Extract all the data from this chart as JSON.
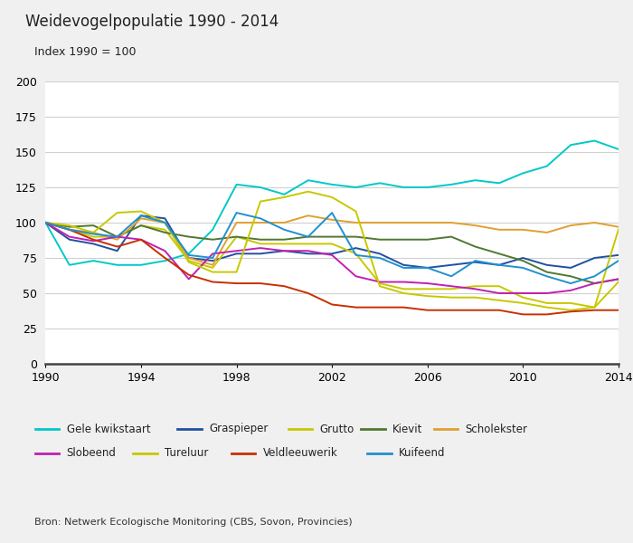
{
  "title": "Weidevogelpopulatie 1990 - 2014",
  "subtitle": "Index 1990 = 100",
  "source": "Bron: Netwerk Ecologische Monitoring (CBS, Sovon, Provincies)",
  "years": [
    1990,
    1991,
    1992,
    1993,
    1994,
    1995,
    1996,
    1997,
    1998,
    1999,
    2000,
    2001,
    2002,
    2003,
    2004,
    2005,
    2006,
    2007,
    2008,
    2009,
    2010,
    2011,
    2012,
    2013,
    2014
  ],
  "series": {
    "Gele kwikstaart": {
      "color": "#00C8C8",
      "values": [
        100,
        70,
        73,
        70,
        70,
        73,
        78,
        95,
        127,
        125,
        120,
        130,
        127,
        125,
        128,
        125,
        125,
        127,
        130,
        128,
        135,
        140,
        155,
        158,
        152
      ]
    },
    "Graspieper": {
      "color": "#2050A0",
      "values": [
        100,
        88,
        85,
        80,
        105,
        103,
        75,
        73,
        78,
        78,
        80,
        78,
        78,
        82,
        78,
        70,
        68,
        70,
        72,
        70,
        75,
        70,
        68,
        75,
        77
      ]
    },
    "Grutto": {
      "color": "#C8C800",
      "values": [
        100,
        95,
        90,
        90,
        98,
        95,
        73,
        68,
        90,
        85,
        85,
        85,
        85,
        78,
        57,
        53,
        53,
        53,
        55,
        55,
        47,
        43,
        43,
        40,
        58
      ]
    },
    "Kievit": {
      "color": "#507830",
      "values": [
        100,
        97,
        98,
        90,
        98,
        93,
        90,
        88,
        90,
        88,
        88,
        90,
        90,
        90,
        88,
        88,
        88,
        90,
        83,
        78,
        73,
        65,
        62,
        57,
        60
      ]
    },
    "Scholekster": {
      "color": "#E0A030",
      "values": [
        100,
        95,
        93,
        88,
        103,
        100,
        75,
        70,
        100,
        100,
        100,
        105,
        102,
        100,
        100,
        100,
        100,
        100,
        98,
        95,
        95,
        93,
        98,
        100,
        97
      ]
    },
    "Slobeend": {
      "color": "#C020B0",
      "values": [
        100,
        90,
        87,
        90,
        88,
        80,
        60,
        78,
        80,
        82,
        80,
        80,
        77,
        62,
        58,
        58,
        57,
        55,
        53,
        50,
        50,
        50,
        52,
        57,
        60
      ]
    },
    "Tureluur": {
      "color": "#C8C800",
      "values": [
        100,
        98,
        93,
        107,
        108,
        100,
        72,
        65,
        65,
        115,
        118,
        122,
        118,
        108,
        55,
        50,
        48,
        47,
        47,
        45,
        43,
        40,
        38,
        40,
        95
      ]
    },
    "Veldleeuwerik": {
      "color": "#C83000",
      "values": [
        100,
        95,
        88,
        83,
        88,
        75,
        63,
        58,
        57,
        57,
        55,
        50,
        42,
        40,
        40,
        40,
        38,
        38,
        38,
        38,
        35,
        35,
        37,
        38,
        38
      ]
    },
    "Kuifeend": {
      "color": "#2090D0",
      "values": [
        100,
        95,
        92,
        90,
        105,
        100,
        77,
        75,
        107,
        103,
        95,
        90,
        107,
        77,
        75,
        68,
        68,
        62,
        73,
        70,
        68,
        62,
        57,
        62,
        73
      ]
    }
  },
  "ylim": [
    0,
    200
  ],
  "yticks": [
    0,
    25,
    50,
    75,
    100,
    125,
    150,
    175,
    200
  ],
  "xticks": [
    1990,
    1994,
    1998,
    2002,
    2006,
    2010,
    2014
  ],
  "plot_bg": "#ffffff",
  "fig_bg": "#f0f0f0",
  "xaxis_band_color": "#d8d8d8",
  "grid_color": "#d0d0d0",
  "legend_order": [
    "Gele kwikstaart",
    "Graspieper",
    "Grutto",
    "Kievit",
    "Scholekster",
    "Slobeend",
    "Tureluur",
    "Veldleeuwerik",
    "Kuifeend"
  ],
  "legend_colors": {
    "Gele kwikstaart": "#00C8C8",
    "Graspieper": "#2050A0",
    "Grutto": "#C8C800",
    "Kievit": "#507830",
    "Scholekster": "#E0A030",
    "Slobeend": "#C020B0",
    "Tureluur": "#C8C800",
    "Veldleeuwerik": "#C83000",
    "Kuifeend": "#2090D0"
  }
}
